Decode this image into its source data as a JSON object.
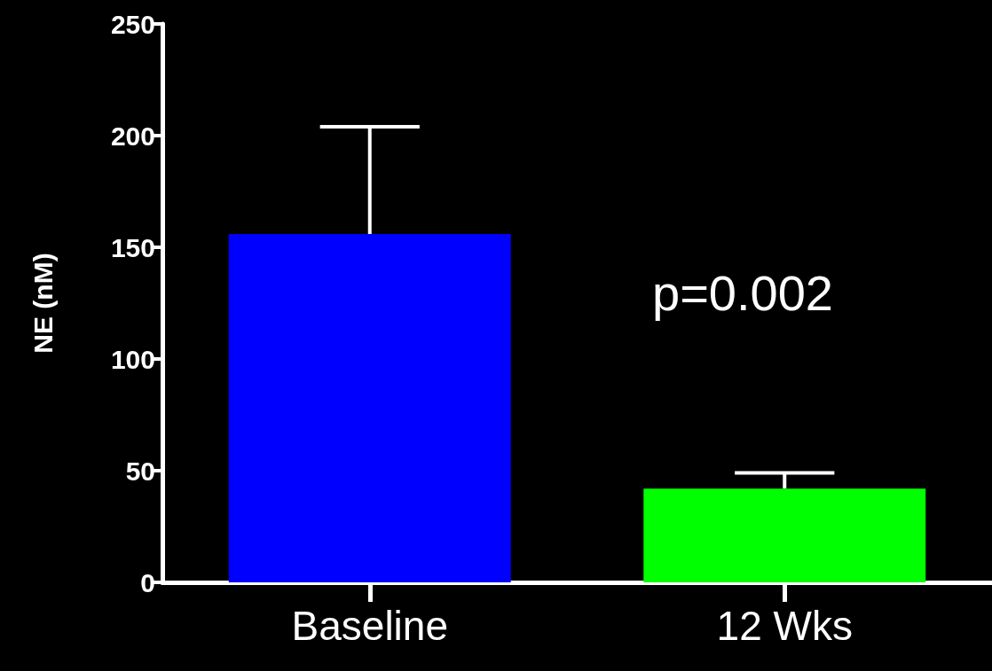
{
  "chart_data": {
    "type": "bar",
    "ylabel": "NE (nM)",
    "categories": [
      "Baseline",
      "12 Wks"
    ],
    "values": [
      156,
      42
    ],
    "colors": [
      "#0000ff",
      "#00ff00"
    ],
    "errors": [
      [
        156,
        204
      ],
      [
        42,
        49
      ]
    ],
    "ylim": [
      0,
      250
    ],
    "yticks": [
      0,
      50,
      100,
      150,
      200,
      250
    ],
    "grid": false,
    "annotations": [
      "p=0.002"
    ]
  }
}
